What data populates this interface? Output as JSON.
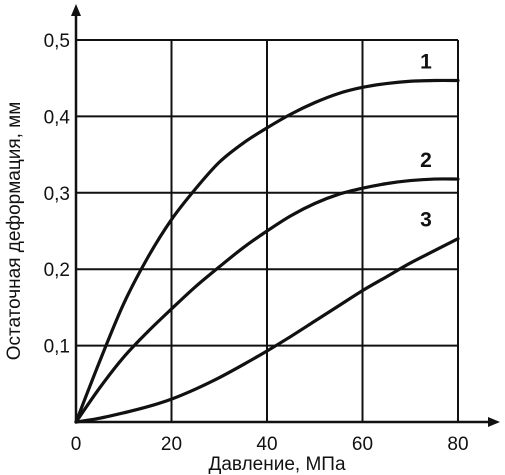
{
  "chart_data": {
    "type": "line",
    "title": "",
    "xlabel": "Давление, МПа",
    "ylabel": "Остаточная деформация, мм",
    "xlim": [
      0,
      80
    ],
    "ylim": [
      0,
      0.5
    ],
    "grid": true,
    "x_ticks": [
      {
        "value": 0,
        "label": "0"
      },
      {
        "value": 20,
        "label": "20"
      },
      {
        "value": 40,
        "label": "40"
      },
      {
        "value": 60,
        "label": "60"
      },
      {
        "value": 80,
        "label": "80"
      }
    ],
    "y_ticks": [
      {
        "value": 0.1,
        "label": "0,1"
      },
      {
        "value": 0.2,
        "label": "0,2"
      },
      {
        "value": 0.3,
        "label": "0,3"
      },
      {
        "value": 0.4,
        "label": "0,4"
      },
      {
        "value": 0.5,
        "label": "0,5"
      }
    ],
    "series": [
      {
        "label": "1",
        "color": "#111111",
        "points": [
          [
            0,
            0
          ],
          [
            5,
            0.08
          ],
          [
            10,
            0.155
          ],
          [
            15,
            0.215
          ],
          [
            20,
            0.265
          ],
          [
            25,
            0.305
          ],
          [
            30,
            0.34
          ],
          [
            35,
            0.365
          ],
          [
            40,
            0.385
          ],
          [
            45,
            0.403
          ],
          [
            50,
            0.418
          ],
          [
            55,
            0.43
          ],
          [
            60,
            0.438
          ],
          [
            65,
            0.443
          ],
          [
            70,
            0.446
          ],
          [
            75,
            0.447
          ],
          [
            80,
            0.447
          ]
        ]
      },
      {
        "label": "2",
        "color": "#111111",
        "points": [
          [
            0,
            0
          ],
          [
            5,
            0.045
          ],
          [
            10,
            0.085
          ],
          [
            15,
            0.118
          ],
          [
            20,
            0.148
          ],
          [
            25,
            0.177
          ],
          [
            30,
            0.203
          ],
          [
            35,
            0.228
          ],
          [
            40,
            0.25
          ],
          [
            45,
            0.27
          ],
          [
            50,
            0.286
          ],
          [
            55,
            0.298
          ],
          [
            60,
            0.306
          ],
          [
            65,
            0.312
          ],
          [
            70,
            0.316
          ],
          [
            75,
            0.318
          ],
          [
            80,
            0.318
          ]
        ]
      },
      {
        "label": "3",
        "color": "#111111",
        "points": [
          [
            0,
            0
          ],
          [
            5,
            0.005
          ],
          [
            10,
            0.012
          ],
          [
            15,
            0.02
          ],
          [
            20,
            0.03
          ],
          [
            25,
            0.043
          ],
          [
            30,
            0.058
          ],
          [
            35,
            0.075
          ],
          [
            40,
            0.093
          ],
          [
            45,
            0.112
          ],
          [
            50,
            0.132
          ],
          [
            55,
            0.152
          ],
          [
            60,
            0.172
          ],
          [
            65,
            0.19
          ],
          [
            70,
            0.208
          ],
          [
            75,
            0.224
          ],
          [
            80,
            0.24
          ]
        ]
      }
    ]
  }
}
